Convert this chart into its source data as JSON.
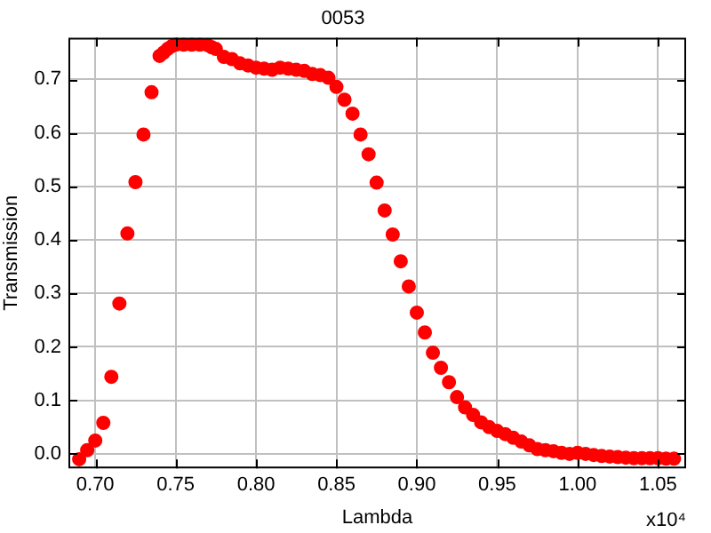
{
  "chart_data": {
    "type": "scatter",
    "title": "0053",
    "xlabel": "Lambda",
    "ylabel": "Transmission",
    "annotations": [
      "x10⁴"
    ],
    "x": [
      0.69,
      0.695,
      0.7,
      0.705,
      0.71,
      0.715,
      0.72,
      0.725,
      0.73,
      0.735,
      0.74,
      0.7425,
      0.745,
      0.7475,
      0.75,
      0.755,
      0.76,
      0.765,
      0.77,
      0.7725,
      0.775,
      0.78,
      0.785,
      0.79,
      0.795,
      0.8,
      0.805,
      0.81,
      0.815,
      0.82,
      0.825,
      0.83,
      0.835,
      0.84,
      0.845,
      0.85,
      0.855,
      0.86,
      0.865,
      0.87,
      0.875,
      0.88,
      0.885,
      0.89,
      0.895,
      0.9,
      0.905,
      0.91,
      0.915,
      0.92,
      0.925,
      0.93,
      0.935,
      0.94,
      0.945,
      0.95,
      0.955,
      0.96,
      0.965,
      0.97,
      0.975,
      0.98,
      0.985,
      0.99,
      0.995,
      1.0,
      1.005,
      1.01,
      1.015,
      1.02,
      1.025,
      1.03,
      1.035,
      1.04,
      1.045,
      1.05,
      1.055,
      1.06
    ],
    "series": [
      {
        "color": "#ff0000",
        "values": [
          -0.01,
          0.007,
          0.025,
          0.058,
          0.144,
          0.281,
          0.412,
          0.508,
          0.597,
          0.676,
          0.744,
          0.75,
          0.757,
          0.762,
          0.765,
          0.765,
          0.765,
          0.765,
          0.764,
          0.76,
          0.757,
          0.742,
          0.738,
          0.73,
          0.726,
          0.722,
          0.72,
          0.718,
          0.722,
          0.72,
          0.718,
          0.716,
          0.71,
          0.708,
          0.703,
          0.686,
          0.662,
          0.636,
          0.597,
          0.56,
          0.507,
          0.455,
          0.41,
          0.36,
          0.313,
          0.264,
          0.227,
          0.189,
          0.161,
          0.134,
          0.106,
          0.087,
          0.073,
          0.059,
          0.05,
          0.043,
          0.037,
          0.03,
          0.023,
          0.016,
          0.009,
          0.007,
          0.005,
          0.002,
          0.0,
          0.002,
          0.0,
          -0.002,
          -0.004,
          -0.005,
          -0.006,
          -0.007,
          -0.008,
          -0.008,
          -0.008,
          -0.008,
          -0.009,
          -0.009
        ]
      }
    ],
    "xlim": [
      0.6833,
      1.0675
    ],
    "ylim": [
      -0.027,
      0.778
    ],
    "xticks": [
      {
        "value": 0.7,
        "label": "0.70"
      },
      {
        "value": 0.75,
        "label": "0.75"
      },
      {
        "value": 0.8,
        "label": "0.80"
      },
      {
        "value": 0.85,
        "label": "0.85"
      },
      {
        "value": 0.9,
        "label": "0.90"
      },
      {
        "value": 0.95,
        "label": "0.95"
      },
      {
        "value": 1.0,
        "label": "1.00"
      },
      {
        "value": 1.05,
        "label": "1.05"
      }
    ],
    "yticks": [
      {
        "value": 0,
        "label": "0.0"
      },
      0.1,
      0.2,
      0.3,
      0.4,
      0.5,
      0.6,
      0.7
    ],
    "grid": true,
    "legend": false,
    "marker": "circle"
  }
}
